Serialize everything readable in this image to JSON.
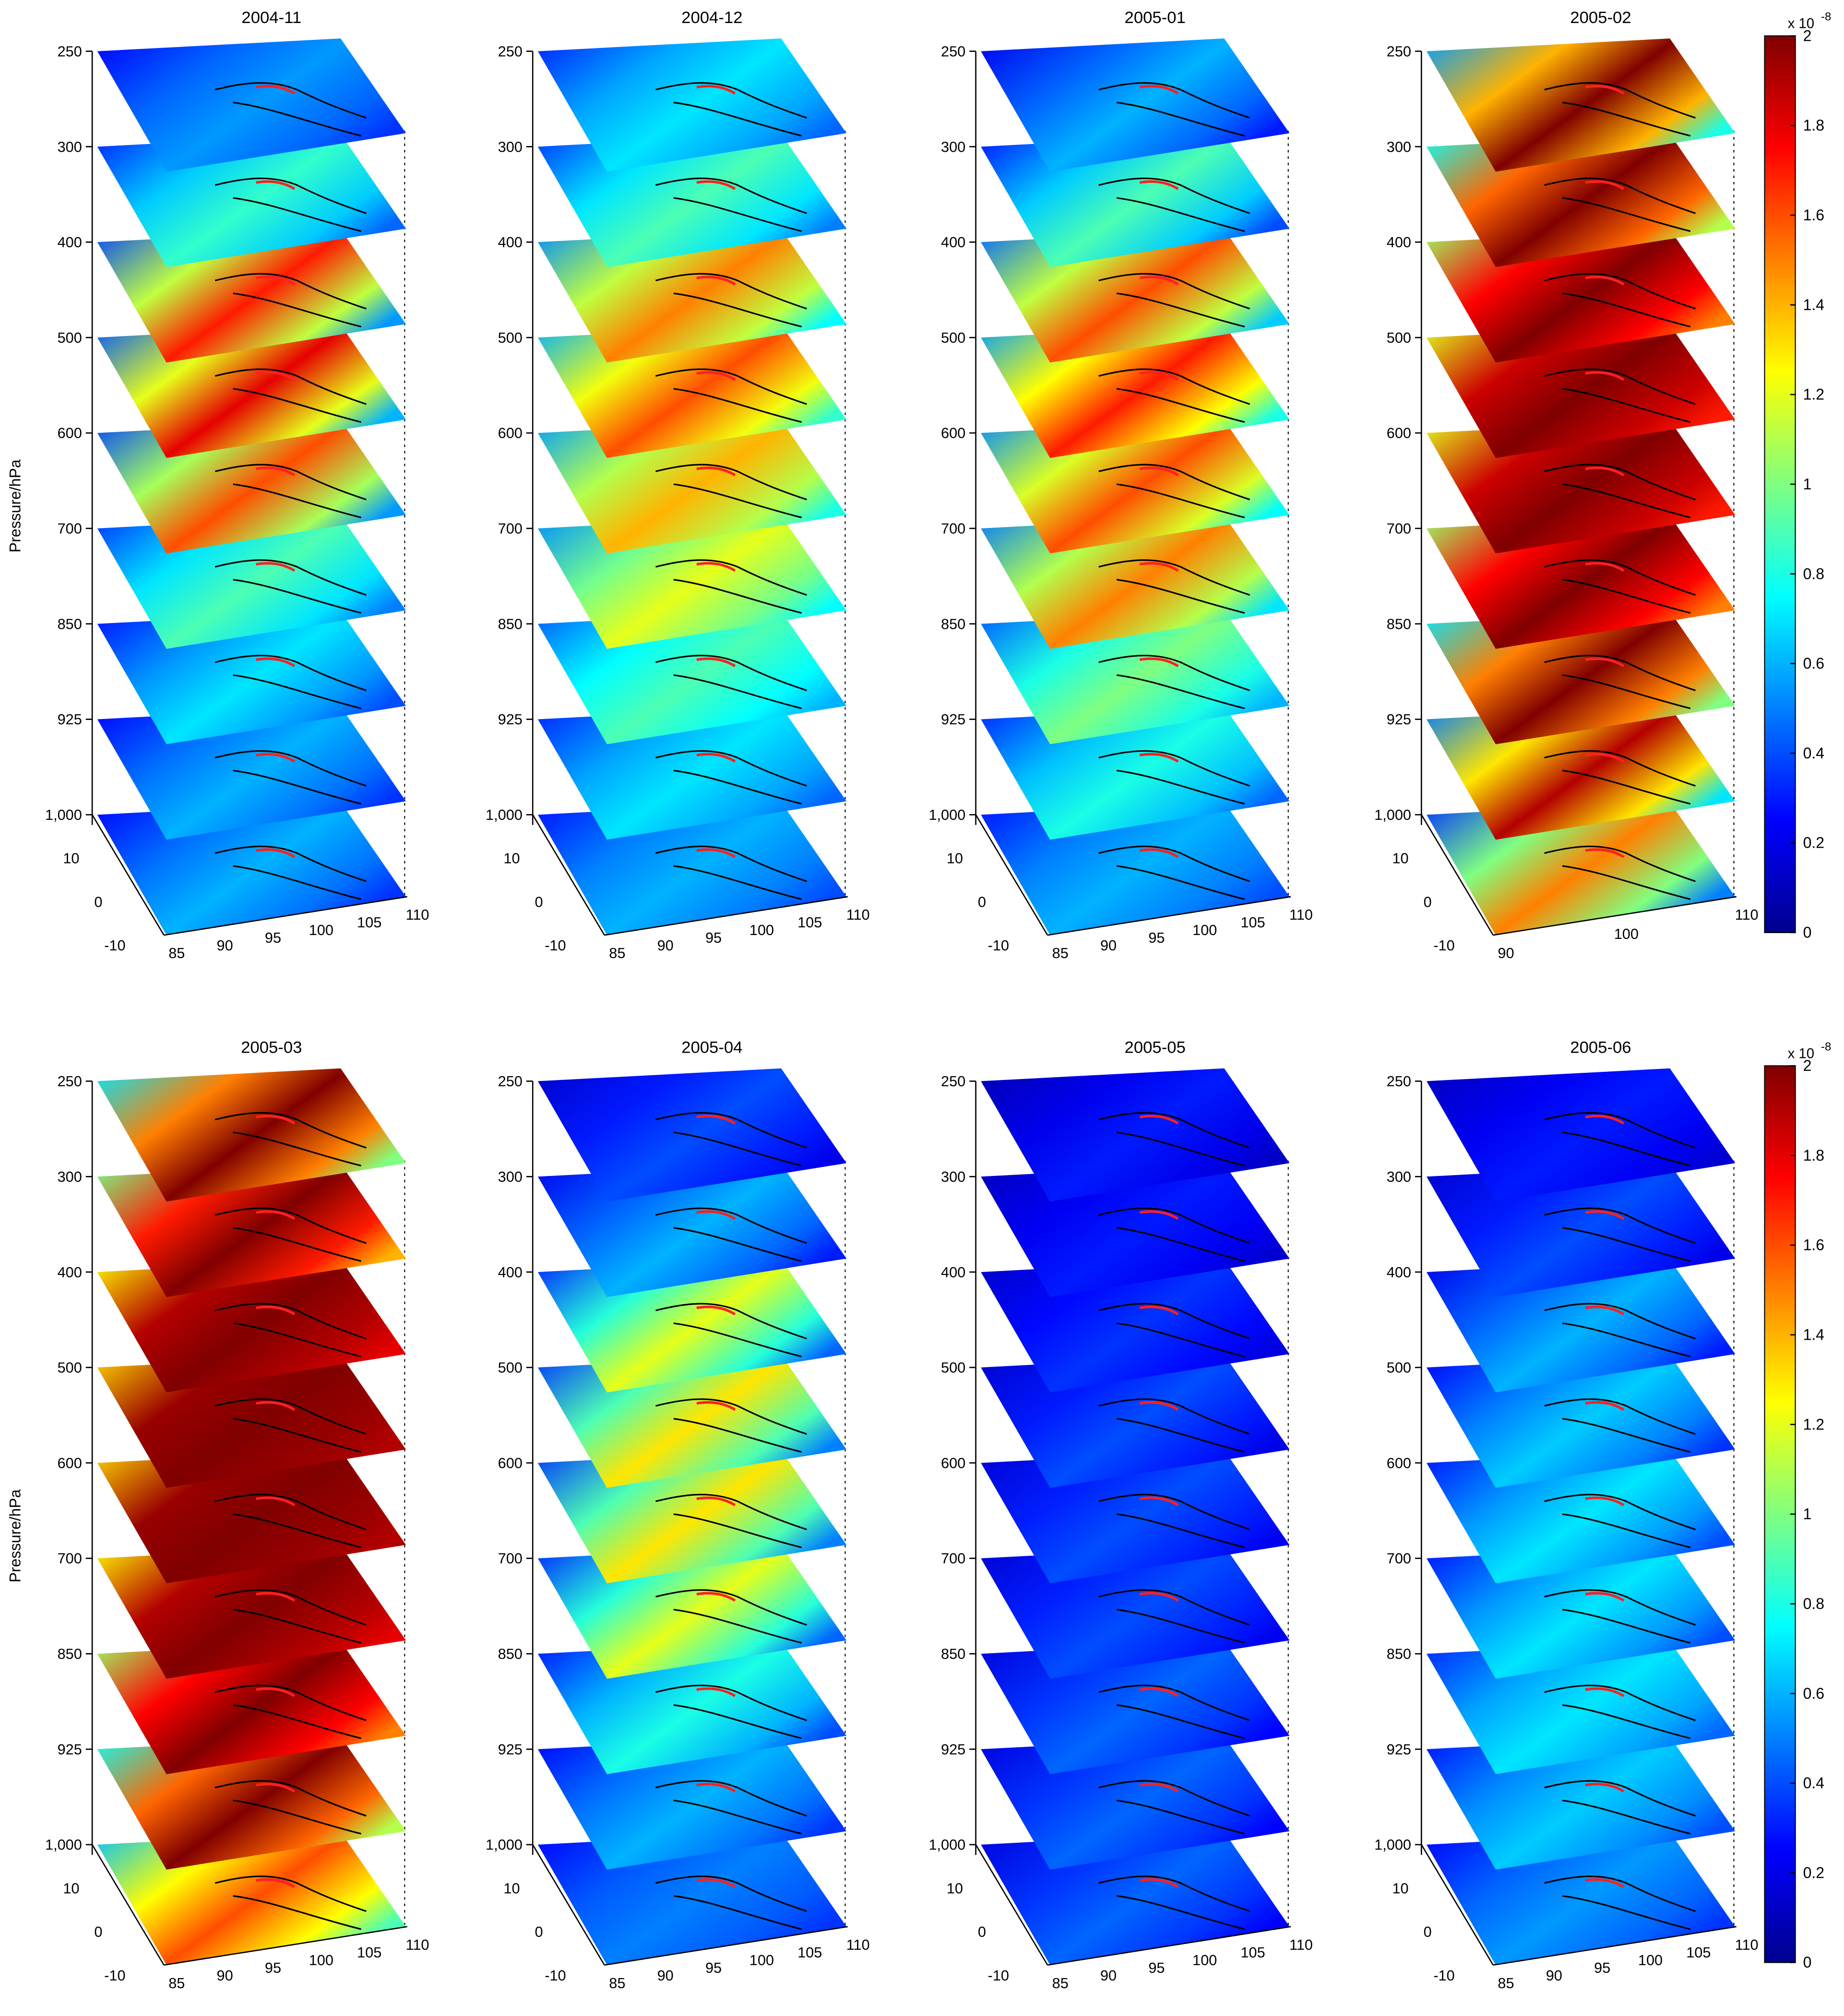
{
  "figure": {
    "rows": [
      {
        "panels": [
          {
            "title": "2004-11",
            "x_ticks": [
              "85",
              "90",
              "95",
              "100",
              "105",
              "110"
            ],
            "lat_ticks": [
              "10",
              "0",
              "-10"
            ]
          },
          {
            "title": "2004-12",
            "x_ticks": [
              "85",
              "90",
              "95",
              "100",
              "105",
              "110"
            ],
            "lat_ticks": [
              "10",
              "0",
              "-10"
            ]
          },
          {
            "title": "2005-01",
            "x_ticks": [
              "85",
              "90",
              "95",
              "100",
              "105",
              "110"
            ],
            "lat_ticks": [
              "10",
              "0",
              "-10"
            ]
          },
          {
            "title": "2005-02",
            "x_ticks": [
              "90",
              "100",
              "110"
            ],
            "lat_ticks": [
              "10",
              "0",
              "-10"
            ]
          }
        ],
        "colorbar": {
          "ticks": [
            "0",
            "0.2",
            "0.4",
            "0.6",
            "0.8",
            "1",
            "1.2",
            "1.4",
            "1.6",
            "1.8",
            "2"
          ],
          "multiplier": "x 10",
          "exponent": "-8"
        }
      },
      {
        "panels": [
          {
            "title": "2005-03",
            "x_ticks": [
              "85",
              "90",
              "95",
              "100",
              "105",
              "110"
            ],
            "lat_ticks": [
              "10",
              "0",
              "-10"
            ]
          },
          {
            "title": "2005-04",
            "x_ticks": [
              "85",
              "90",
              "95",
              "100",
              "105",
              "110"
            ],
            "lat_ticks": [
              "10",
              "0",
              "-10"
            ]
          },
          {
            "title": "2005-05",
            "x_ticks": [
              "85",
              "90",
              "95",
              "100",
              "105",
              "110"
            ],
            "lat_ticks": [
              "10",
              "0",
              "-10"
            ]
          },
          {
            "title": "2005-06",
            "x_ticks": [
              "85",
              "90",
              "95",
              "100",
              "105",
              "110"
            ],
            "lat_ticks": [
              "10",
              "0",
              "-10"
            ]
          }
        ],
        "colorbar": {
          "ticks": [
            "0",
            "0.2",
            "0.4",
            "0.6",
            "0.8",
            "1",
            "1.2",
            "1.4",
            "1.6",
            "1.8",
            "2"
          ],
          "multiplier": "x 10",
          "exponent": "-8"
        }
      }
    ],
    "pressure_levels": [
      "250",
      "300",
      "400",
      "500",
      "600",
      "700",
      "850",
      "925",
      "1,000"
    ],
    "ylabel": "Pressure/hPa",
    "colormap": [
      "#00008f",
      "#0000ff",
      "#0080ff",
      "#00ffff",
      "#80ff80",
      "#ffff00",
      "#ff8000",
      "#ff0000",
      "#800000"
    ]
  },
  "chart_data": [
    {
      "type": "heatmap",
      "title": "2004-11",
      "ylabel": "Pressure/hPa",
      "xlim": [
        85,
        110
      ],
      "ylim": [
        -10,
        10
      ],
      "zlevels": [
        250,
        300,
        400,
        500,
        600,
        700,
        850,
        925,
        1000
      ],
      "clim": [
        0,
        2e-08
      ],
      "layer_mean": [
        0.35,
        0.45,
        0.55,
        0.6,
        0.55,
        0.5,
        0.4,
        0.35,
        0.35
      ],
      "layer_max": [
        0.55,
        0.85,
        1.7,
        1.8,
        1.6,
        0.9,
        0.7,
        0.6,
        0.6
      ]
    },
    {
      "type": "heatmap",
      "title": "2004-12",
      "ylabel": "Pressure/hPa",
      "xlim": [
        85,
        110
      ],
      "ylim": [
        -10,
        10
      ],
      "zlevels": [
        250,
        300,
        400,
        500,
        600,
        700,
        850,
        925,
        1000
      ],
      "clim": [
        0,
        2e-08
      ],
      "layer_mean": [
        0.45,
        0.5,
        0.75,
        0.85,
        0.8,
        0.75,
        0.6,
        0.45,
        0.4
      ],
      "layer_max": [
        0.7,
        0.9,
        1.5,
        1.6,
        1.4,
        1.2,
        0.9,
        0.7,
        0.6
      ]
    },
    {
      "type": "heatmap",
      "title": "2005-01",
      "ylabel": "Pressure/hPa",
      "xlim": [
        85,
        110
      ],
      "ylim": [
        -10,
        10
      ],
      "zlevels": [
        250,
        300,
        400,
        500,
        600,
        700,
        850,
        925,
        1000
      ],
      "clim": [
        0,
        2e-08
      ],
      "layer_mean": [
        0.3,
        0.4,
        0.65,
        0.8,
        0.75,
        0.7,
        0.6,
        0.45,
        0.4
      ],
      "layer_max": [
        0.6,
        0.9,
        1.6,
        1.7,
        1.6,
        1.5,
        1.0,
        0.8,
        0.6
      ]
    },
    {
      "type": "heatmap",
      "title": "2005-02",
      "ylabel": "Pressure/hPa",
      "xlim": [
        85,
        110
      ],
      "ylim": [
        -10,
        10
      ],
      "zlevels": [
        250,
        300,
        400,
        500,
        600,
        700,
        850,
        925,
        1000
      ],
      "clim": [
        0,
        2e-08
      ],
      "layer_mean": [
        0.8,
        1.1,
        1.5,
        1.7,
        1.7,
        1.5,
        1.0,
        0.7,
        0.5
      ],
      "layer_max": [
        2.0,
        2.0,
        2.0,
        2.0,
        2.0,
        2.0,
        2.0,
        1.9,
        1.5
      ]
    },
    {
      "type": "heatmap",
      "title": "2005-03",
      "ylabel": "Pressure/hPa",
      "xlim": [
        85,
        110
      ],
      "ylim": [
        -10,
        10
      ],
      "zlevels": [
        250,
        300,
        400,
        500,
        600,
        700,
        850,
        925,
        1000
      ],
      "clim": [
        0,
        2e-08
      ],
      "layer_mean": [
        1.0,
        1.4,
        1.8,
        1.9,
        1.9,
        1.8,
        1.5,
        1.1,
        0.9
      ],
      "layer_max": [
        2.0,
        2.0,
        2.0,
        2.0,
        2.0,
        2.0,
        2.0,
        2.0,
        1.6
      ]
    },
    {
      "type": "heatmap",
      "title": "2005-04",
      "ylabel": "Pressure/hPa",
      "xlim": [
        85,
        110
      ],
      "ylim": [
        -10,
        10
      ],
      "zlevels": [
        250,
        300,
        400,
        500,
        600,
        700,
        850,
        925,
        1000
      ],
      "clim": [
        0,
        2e-08
      ],
      "layer_mean": [
        0.2,
        0.3,
        0.45,
        0.5,
        0.5,
        0.45,
        0.4,
        0.35,
        0.35
      ],
      "layer_max": [
        0.4,
        0.6,
        1.2,
        1.3,
        1.3,
        1.2,
        0.8,
        0.6,
        0.5
      ]
    },
    {
      "type": "heatmap",
      "title": "2005-05",
      "ylabel": "Pressure/hPa",
      "xlim": [
        85,
        110
      ],
      "ylim": [
        -10,
        10
      ],
      "zlevels": [
        250,
        300,
        400,
        500,
        600,
        700,
        850,
        925,
        1000
      ],
      "clim": [
        0,
        2e-08
      ],
      "layer_mean": [
        0.12,
        0.15,
        0.18,
        0.2,
        0.22,
        0.22,
        0.25,
        0.25,
        0.25
      ],
      "layer_max": [
        0.3,
        0.3,
        0.35,
        0.4,
        0.4,
        0.4,
        0.45,
        0.45,
        0.45
      ]
    },
    {
      "type": "heatmap",
      "title": "2005-06",
      "ylabel": "Pressure/hPa",
      "xlim": [
        85,
        110
      ],
      "ylim": [
        -10,
        10
      ],
      "zlevels": [
        250,
        300,
        400,
        500,
        600,
        700,
        850,
        925,
        1000
      ],
      "clim": [
        0,
        2e-08
      ],
      "layer_mean": [
        0.15,
        0.2,
        0.3,
        0.35,
        0.4,
        0.4,
        0.45,
        0.4,
        0.35
      ],
      "layer_max": [
        0.3,
        0.4,
        0.6,
        0.65,
        0.7,
        0.7,
        0.7,
        0.65,
        0.55
      ]
    }
  ]
}
